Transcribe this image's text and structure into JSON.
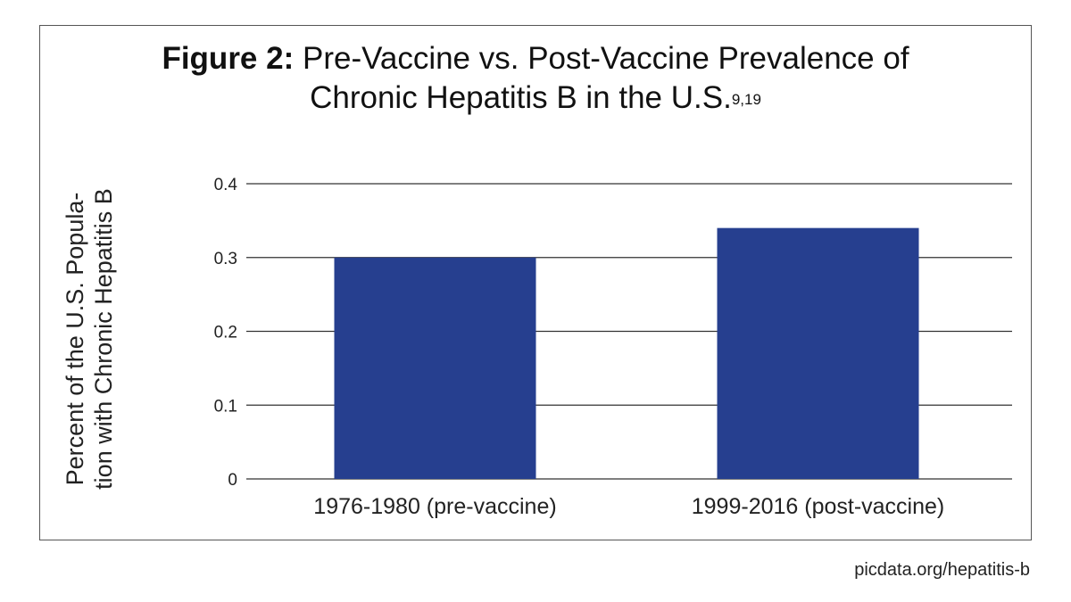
{
  "figure": {
    "label": "Figure 2:",
    "title_line1": "Pre-Vaccine vs. Post-Vaccine Prevalence of",
    "title_line2": "Chronic Hepatitis B in the U.S.",
    "superscript": "9,19"
  },
  "credit": "picdata.org/hepatitis-b",
  "colors": {
    "bar": "#263f8f",
    "grid": "#333333",
    "frame": "#555555"
  },
  "chart_data": {
    "type": "bar",
    "title": "Figure 2: Pre-Vaccine vs. Post-Vaccine Prevalence of Chronic Hepatitis B in the U.S.",
    "categories": [
      "1976-1980 (pre-vaccine)",
      "1999-2016 (post-vaccine)"
    ],
    "values": [
      0.3,
      0.34
    ],
    "xlabel": "",
    "ylabel_line1": "Percent of the U.S. Popula-",
    "ylabel_line2": "tion with Chronic Hepatitis B",
    "ylim": [
      0,
      0.4
    ],
    "yticks": [
      0,
      0.1,
      0.2,
      0.3,
      0.4
    ],
    "ytick_labels": [
      "0",
      "0.1",
      "0.2",
      "0.3",
      "0.4"
    ],
    "grid": true,
    "legend": "none"
  }
}
